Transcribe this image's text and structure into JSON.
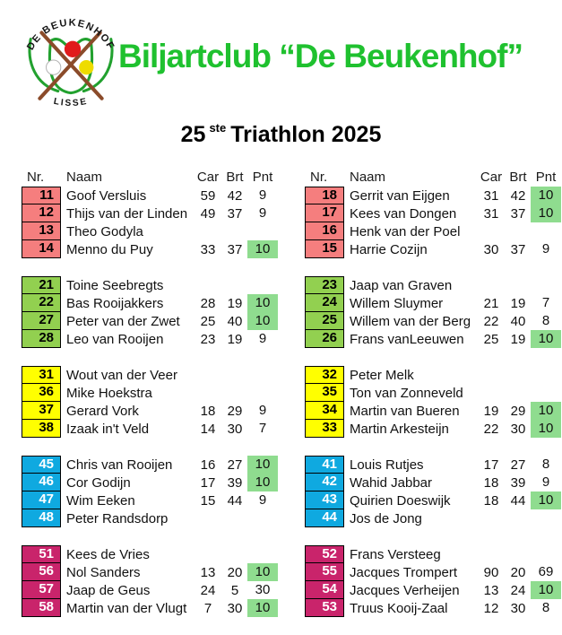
{
  "header": {
    "club_title": "Biljartclub “De Beukenhof”",
    "event_num": "25",
    "event_sup": "ste",
    "event_rest": "Triathlon 2025",
    "logo": {
      "arc_text": "DE BEUKENHOF",
      "bottom_text": "LISSE"
    }
  },
  "columns": {
    "nr": "Nr.",
    "naam": "Naam",
    "car": "Car",
    "brt": "Brt",
    "pnt": "Pnt"
  },
  "colors": {
    "title_green": "#1fc12f",
    "tulip_green": "#22a12f",
    "cue_brown": "#8b4b2a",
    "ball_red": "#e11b1b",
    "ball_yellow": "#eedc00",
    "highlight_green": "#8fdc8f",
    "group_red": "#f57e7e",
    "group_green": "#92d050",
    "group_yellow": "#ffff00",
    "group_blue": "#0fa9e0",
    "group_magenta": "#c9246b"
  },
  "tables": [
    {
      "groups": [
        {
          "fill": "#f57e7e",
          "text": "#000000",
          "rows": [
            {
              "nr": "11",
              "name": "Goof Versluis",
              "car": "59",
              "brt": "42",
              "pnt": "9",
              "win": false
            },
            {
              "nr": "12",
              "name": "Thijs van der Linden",
              "car": "49",
              "brt": "37",
              "pnt": "9",
              "win": false
            },
            {
              "nr": "13",
              "name": "Theo Godyla",
              "car": "",
              "brt": "",
              "pnt": "",
              "win": false
            },
            {
              "nr": "14",
              "name": "Menno du Puy",
              "car": "33",
              "brt": "37",
              "pnt": "10",
              "win": true
            }
          ]
        },
        {
          "fill": "#92d050",
          "text": "#000000",
          "rows": [
            {
              "nr": "21",
              "name": "Toine Seebregts",
              "car": "",
              "brt": "",
              "pnt": "",
              "win": false
            },
            {
              "nr": "22",
              "name": "Bas Rooijakkers",
              "car": "28",
              "brt": "19",
              "pnt": "10",
              "win": true
            },
            {
              "nr": "27",
              "name": "Peter van der Zwet",
              "car": "25",
              "brt": "40",
              "pnt": "10",
              "win": true
            },
            {
              "nr": "28",
              "name": "Leo van Rooijen",
              "car": "23",
              "brt": "19",
              "pnt": "9",
              "win": false
            }
          ]
        },
        {
          "fill": "#ffff00",
          "text": "#000000",
          "rows": [
            {
              "nr": "31",
              "name": "Wout van der Veer",
              "car": "",
              "brt": "",
              "pnt": "",
              "win": false
            },
            {
              "nr": "36",
              "name": "Mike Hoekstra",
              "car": "",
              "brt": "",
              "pnt": "",
              "win": false
            },
            {
              "nr": "37",
              "name": "Gerard Vork",
              "car": "18",
              "brt": "29",
              "pnt": "9",
              "win": false
            },
            {
              "nr": "38",
              "name": "Izaak in't Veld",
              "car": "14",
              "brt": "30",
              "pnt": "7",
              "win": false
            }
          ]
        },
        {
          "fill": "#0fa9e0",
          "text": "#ffffff",
          "rows": [
            {
              "nr": "45",
              "name": "Chris van Rooijen",
              "car": "16",
              "brt": "27",
              "pnt": "10",
              "win": true
            },
            {
              "nr": "46",
              "name": "Cor Godijn",
              "car": "17",
              "brt": "39",
              "pnt": "10",
              "win": true
            },
            {
              "nr": "47",
              "name": "Wim Eeken",
              "car": "15",
              "brt": "44",
              "pnt": "9",
              "win": false
            },
            {
              "nr": "48",
              "name": "Peter Randsdorp",
              "car": "",
              "brt": "",
              "pnt": "",
              "win": false
            }
          ]
        },
        {
          "fill": "#c9246b",
          "text": "#ffffff",
          "rows": [
            {
              "nr": "51",
              "name": "Kees de Vries",
              "car": "",
              "brt": "",
              "pnt": "",
              "win": false
            },
            {
              "nr": "56",
              "name": "Nol Sanders",
              "car": "13",
              "brt": "20",
              "pnt": "10",
              "win": true
            },
            {
              "nr": "57",
              "name": "Jaap de Geus",
              "car": "24",
              "brt": "5",
              "pnt": "30",
              "win": false
            },
            {
              "nr": "58",
              "name": "Martin van der Vlugt",
              "car": "7",
              "brt": "30",
              "pnt": "10",
              "win": true
            }
          ]
        }
      ]
    },
    {
      "groups": [
        {
          "fill": "#f57e7e",
          "text": "#000000",
          "rows": [
            {
              "nr": "18",
              "name": "Gerrit van Eijgen",
              "car": "31",
              "brt": "42",
              "pnt": "10",
              "win": true
            },
            {
              "nr": "17",
              "name": "Kees van Dongen",
              "car": "31",
              "brt": "37",
              "pnt": "10",
              "win": true
            },
            {
              "nr": "16",
              "name": "Henk van der Poel",
              "car": "",
              "brt": "",
              "pnt": "",
              "win": false
            },
            {
              "nr": "15",
              "name": "Harrie Cozijn",
              "car": "30",
              "brt": "37",
              "pnt": "9",
              "win": false
            }
          ]
        },
        {
          "fill": "#92d050",
          "text": "#000000",
          "rows": [
            {
              "nr": "23",
              "name": "Jaap van Graven",
              "car": "",
              "brt": "",
              "pnt": "",
              "win": false
            },
            {
              "nr": "24",
              "name": "Willem Sluymer",
              "car": "21",
              "brt": "19",
              "pnt": "7",
              "win": false
            },
            {
              "nr": "25",
              "name": "Willem van der Berg",
              "car": "22",
              "brt": "40",
              "pnt": "8",
              "win": false
            },
            {
              "nr": "26",
              "name": "Frans vanLeeuwen",
              "car": "25",
              "brt": "19",
              "pnt": "10",
              "win": true
            }
          ]
        },
        {
          "fill": "#ffff00",
          "text": "#000000",
          "rows": [
            {
              "nr": "32",
              "name": "Peter Melk",
              "car": "",
              "brt": "",
              "pnt": "",
              "win": false
            },
            {
              "nr": "35",
              "name": "Ton van Zonneveld",
              "car": "",
              "brt": "",
              "pnt": "",
              "win": false
            },
            {
              "nr": "34",
              "name": "Martin van Bueren",
              "car": "19",
              "brt": "29",
              "pnt": "10",
              "win": true
            },
            {
              "nr": "33",
              "name": "Martin Arkesteijn",
              "car": "22",
              "brt": "30",
              "pnt": "10",
              "win": true
            }
          ]
        },
        {
          "fill": "#0fa9e0",
          "text": "#ffffff",
          "rows": [
            {
              "nr": "41",
              "name": "Louis Rutjes",
              "car": "17",
              "brt": "27",
              "pnt": "8",
              "win": false
            },
            {
              "nr": "42",
              "name": "Wahid Jabbar",
              "car": "18",
              "brt": "39",
              "pnt": "9",
              "win": false
            },
            {
              "nr": "43",
              "name": "Quirien Doeswijk",
              "car": "18",
              "brt": "44",
              "pnt": "10",
              "win": true
            },
            {
              "nr": "44",
              "name": "Jos de Jong",
              "car": "",
              "brt": "",
              "pnt": "",
              "win": false
            }
          ]
        },
        {
          "fill": "#c9246b",
          "text": "#ffffff",
          "rows": [
            {
              "nr": "52",
              "name": "Frans Versteeg",
              "car": "",
              "brt": "",
              "pnt": "",
              "win": false
            },
            {
              "nr": "55",
              "name": "Jacques Trompert",
              "car": "90",
              "brt": "20",
              "pnt": "69",
              "win": false
            },
            {
              "nr": "54",
              "name": "Jacques Verheijen",
              "car": "13",
              "brt": "24",
              "pnt": "10",
              "win": true
            },
            {
              "nr": "53",
              "name": "Truus Kooij-Zaal",
              "car": "12",
              "brt": "30",
              "pnt": "8",
              "win": false
            }
          ]
        }
      ]
    }
  ]
}
